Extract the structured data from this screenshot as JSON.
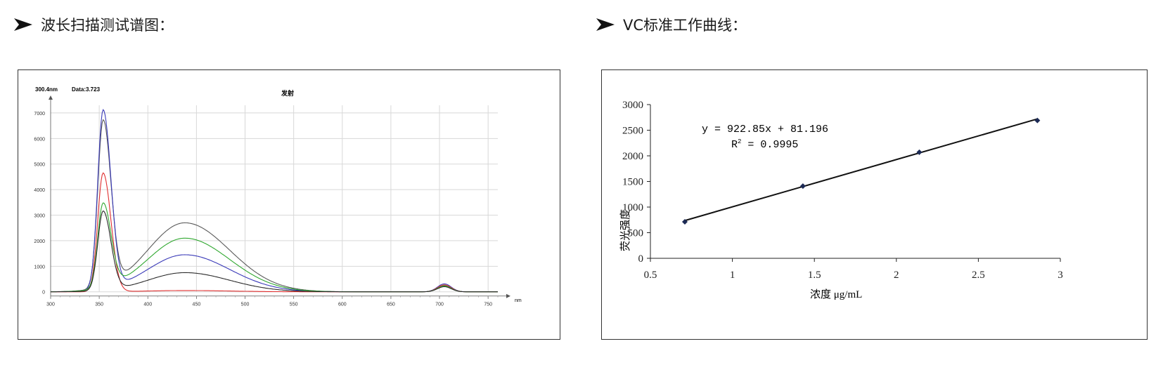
{
  "headings": {
    "left": "波长扫描测试谱图：",
    "right": "VC标准工作曲线："
  },
  "chart_data": [
    {
      "type": "line",
      "title": "发射",
      "readout_wavelength": "300.4nm",
      "readout_data": "Data:3.723",
      "xlabel": "nm",
      "ylabel": "",
      "xlim": [
        300,
        760
      ],
      "ylim": [
        -200,
        7300
      ],
      "x_ticks": [
        "300",
        "350",
        "400",
        "450",
        "500",
        "550",
        "600",
        "650",
        "700",
        "750"
      ],
      "y_ticks": [
        "7000",
        "6000",
        "5000",
        "4000",
        "3000",
        "2000",
        "1000",
        "0"
      ],
      "grid": true,
      "series": [
        {
          "color": "#5a5a5a",
          "peak1": 6500,
          "peak2": 2700,
          "peak3": 260
        },
        {
          "color": "#3a3ab8",
          "peak1": 7000,
          "peak2": 1450,
          "peak3": 310
        },
        {
          "color": "#e03030",
          "peak1": 4650,
          "peak2": 50,
          "peak3": 270
        },
        {
          "color": "#30a830",
          "peak1": 3300,
          "peak2": 2100,
          "peak3": 230
        },
        {
          "color": "#2a2a2a",
          "peak1": 3100,
          "peak2": 750,
          "peak3": 200
        }
      ]
    },
    {
      "type": "scatter",
      "title": "",
      "xlabel": "浓度  μg/mL",
      "ylabel": "荧光强度",
      "xlim": [
        0.5,
        3
      ],
      "ylim": [
        0,
        3000
      ],
      "x_ticks": [
        "0.5",
        "1",
        "1.5",
        "2",
        "2.5",
        "3"
      ],
      "y_ticks": [
        "3000",
        "2500",
        "2000",
        "1500",
        "1000",
        "500",
        "0"
      ],
      "points": [
        {
          "x": 0.71,
          "y": 712
        },
        {
          "x": 1.43,
          "y": 1410
        },
        {
          "x": 2.14,
          "y": 2070
        },
        {
          "x": 2.86,
          "y": 2690
        }
      ],
      "trendline": {
        "slope": 922.85,
        "intercept": 81.196
      },
      "equation": "y = 922.85x + 81.196",
      "r2_label": "R",
      "r2_sup": "2",
      "r2_value": " = 0.9995",
      "grid": false
    }
  ]
}
